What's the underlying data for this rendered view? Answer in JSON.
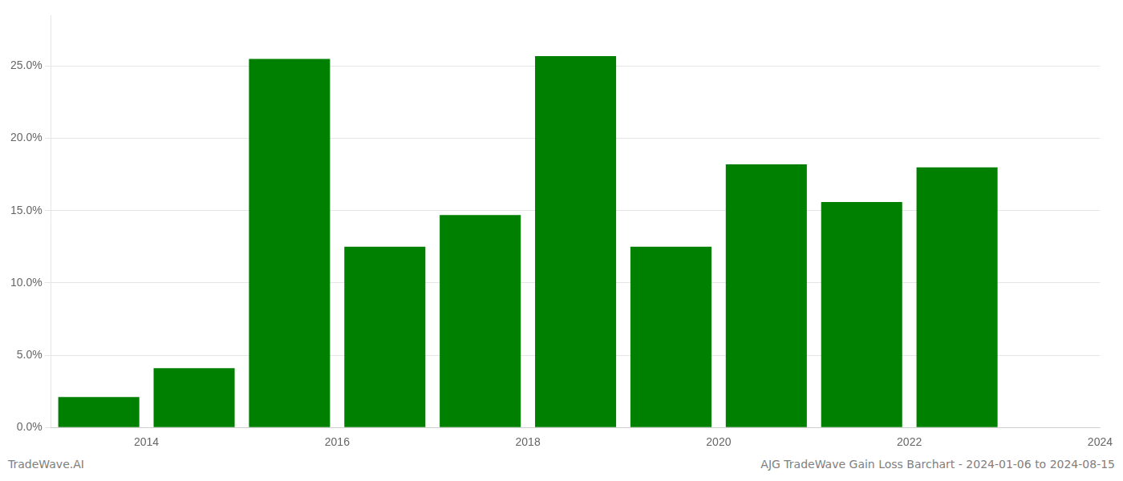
{
  "chart_data": {
    "type": "bar",
    "x": [
      2013.5,
      2014.5,
      2015.5,
      2016.5,
      2017.5,
      2018.5,
      2019.5,
      2020.5,
      2021.5,
      2022.5
    ],
    "values": [
      0.021,
      0.041,
      0.255,
      0.125,
      0.147,
      0.257,
      0.125,
      0.182,
      0.156,
      0.18
    ],
    "color": "#008000",
    "xlim": [
      2013.0,
      2024.0
    ],
    "xticks": [
      2014,
      2016,
      2018,
      2020,
      2022,
      2024
    ],
    "ylim": [
      0,
      0.285
    ],
    "yticks": [
      {
        "value": 0.0,
        "label": "0.0%"
      },
      {
        "value": 0.05,
        "label": "5.0%"
      },
      {
        "value": 0.1,
        "label": "10.0%"
      },
      {
        "value": 0.15,
        "label": "15.0%"
      },
      {
        "value": 0.2,
        "label": "20.0%"
      },
      {
        "value": 0.25,
        "label": "25.0%"
      }
    ],
    "grid": "y",
    "annotations": [
      "TradeWave.AI",
      "AJG TradeWave Gain Loss Barchart - 2024-01-06 to 2024-08-15"
    ]
  }
}
